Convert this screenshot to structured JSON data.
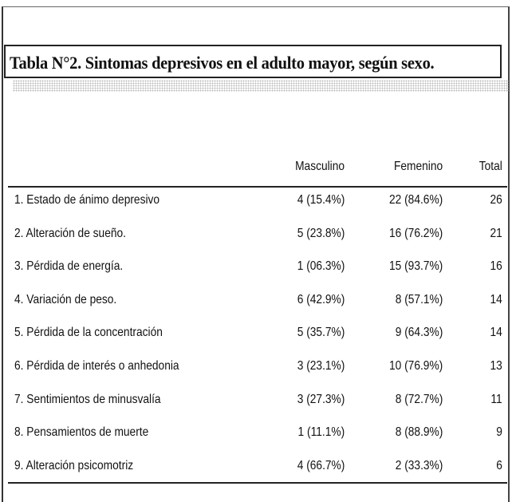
{
  "title": "Tabla N°2. Sintomas depresivos en el adulto mayor, según sexo.",
  "columns": [
    "",
    "Masculino",
    "Femenino",
    "Total"
  ],
  "rows": [
    {
      "label": "1. Estado de ánimo depresivo",
      "masculino": "4 (15.4%)",
      "femenino": "22 (84.6%)",
      "total": "26"
    },
    {
      "label": "2. Alteración de sueño.",
      "masculino": "5 (23.8%)",
      "femenino": "16 (76.2%)",
      "total": "21"
    },
    {
      "label": "3. Pérdida de energía.",
      "masculino": "1 (06.3%)",
      "femenino": "15 (93.7%)",
      "total": "16"
    },
    {
      "label": "4. Variación de peso.",
      "masculino": "6 (42.9%)",
      "femenino": "8 (57.1%)",
      "total": "14"
    },
    {
      "label": "5. Pérdida de la concentración",
      "masculino": "5 (35.7%)",
      "femenino": "9 (64.3%)",
      "total": "14"
    },
    {
      "label": "6. Pérdida de interés o anhedonia",
      "masculino": "3 (23.1%)",
      "femenino": "10 (76.9%)",
      "total": "13"
    },
    {
      "label": "7. Sentimientos de minusvalía",
      "masculino": "3 (27.3%)",
      "femenino": "8 (72.7%)",
      "total": "11"
    },
    {
      "label": "8. Pensamientos de muerte",
      "masculino": "1 (11.1%)",
      "femenino": "8 (88.9%)",
      "total": "9"
    },
    {
      "label": "9. Alteración psicomotriz",
      "masculino": "4 (66.7%)",
      "femenino": "2 (33.3%)",
      "total": "6"
    }
  ]
}
